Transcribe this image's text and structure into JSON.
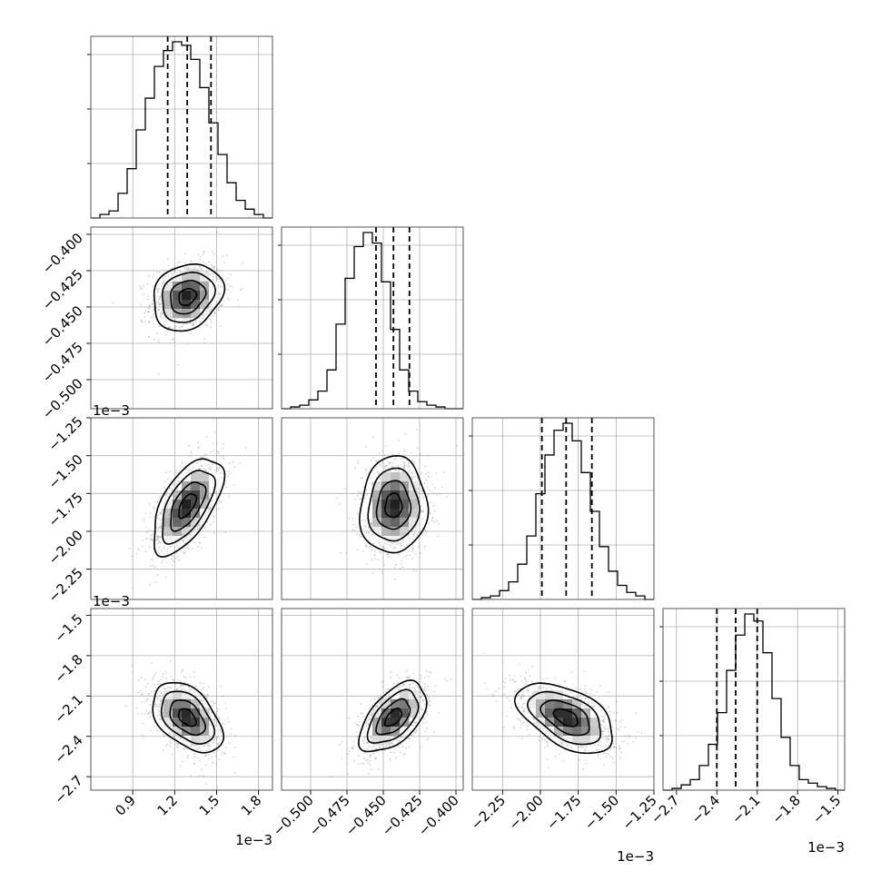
{
  "chart_data": {
    "type": "corner",
    "grid": true,
    "params": [
      {
        "range": [
          0.6,
          1.9
        ],
        "mean": 1.29,
        "sd": 0.125,
        "q": [
          1.15,
          1.29,
          1.46
        ],
        "ticks": [
          0.9,
          1.2,
          1.5,
          1.8
        ],
        "tick_labels": [
          "0.9",
          "1.2",
          "1.5",
          "1.8"
        ],
        "scale_label": "1e−3"
      },
      {
        "range": [
          -0.52,
          -0.395
        ],
        "mean": -0.443,
        "sd": 0.0115,
        "q": [
          -0.455,
          -0.443,
          -0.432
        ],
        "ticks": [
          -0.5,
          -0.475,
          -0.45,
          -0.425,
          -0.4
        ],
        "tick_labels": [
          "−0.500",
          "−0.475",
          "−0.450",
          "−0.425",
          "−0.400"
        ],
        "scale_label": ""
      },
      {
        "range": [
          -2.45,
          -1.25
        ],
        "mean": -1.83,
        "sd": 0.16,
        "q": [
          -1.99,
          -1.83,
          -1.66
        ],
        "ticks": [
          -2.25,
          -2.0,
          -1.75,
          -1.5,
          -1.25
        ],
        "tick_labels": [
          "−2.25",
          "−2.00",
          "−1.75",
          "−1.50",
          "−1.25"
        ],
        "scale_label": "1e−3"
      },
      {
        "range": [
          -2.8,
          -1.45
        ],
        "mean": -2.26,
        "sd": 0.13,
        "q": [
          -2.4,
          -2.26,
          -2.1
        ],
        "ticks": [
          -2.7,
          -2.4,
          -2.1,
          -1.8,
          -1.5
        ],
        "tick_labels": [
          "−2.7",
          "−2.4",
          "−2.1",
          "−1.8",
          "−1.5"
        ],
        "scale_label": "1e−3"
      }
    ],
    "row_scale_labels": [
      "",
      "",
      "1e−3",
      "1e−3"
    ],
    "correlations": [
      [
        1,
        0.2,
        0.6,
        -0.45
      ],
      [
        0.2,
        1,
        0.05,
        0.55
      ],
      [
        0.6,
        0.05,
        1,
        -0.5
      ],
      [
        -0.45,
        0.55,
        -0.5,
        1
      ]
    ],
    "histograms": [
      [
        0.0,
        0.02,
        0.04,
        0.14,
        0.28,
        0.5,
        0.68,
        0.86,
        0.95,
        1.0,
        0.98,
        0.9,
        0.74,
        0.54,
        0.36,
        0.2,
        0.1,
        0.05,
        0.02,
        0.0
      ],
      [
        0.0,
        0.01,
        0.02,
        0.05,
        0.1,
        0.22,
        0.48,
        0.74,
        0.92,
        1.0,
        0.94,
        0.72,
        0.45,
        0.22,
        0.1,
        0.04,
        0.02,
        0.01,
        0.0,
        0.0
      ],
      [
        0.0,
        0.01,
        0.02,
        0.05,
        0.1,
        0.2,
        0.36,
        0.6,
        0.82,
        0.96,
        1.0,
        0.9,
        0.72,
        0.5,
        0.3,
        0.16,
        0.08,
        0.04,
        0.02,
        0.0
      ],
      [
        0.0,
        0.01,
        0.03,
        0.06,
        0.14,
        0.26,
        0.44,
        0.68,
        0.88,
        1.0,
        0.96,
        0.78,
        0.52,
        0.3,
        0.14,
        0.06,
        0.04,
        0.02,
        0.01,
        0.0
      ]
    ]
  }
}
